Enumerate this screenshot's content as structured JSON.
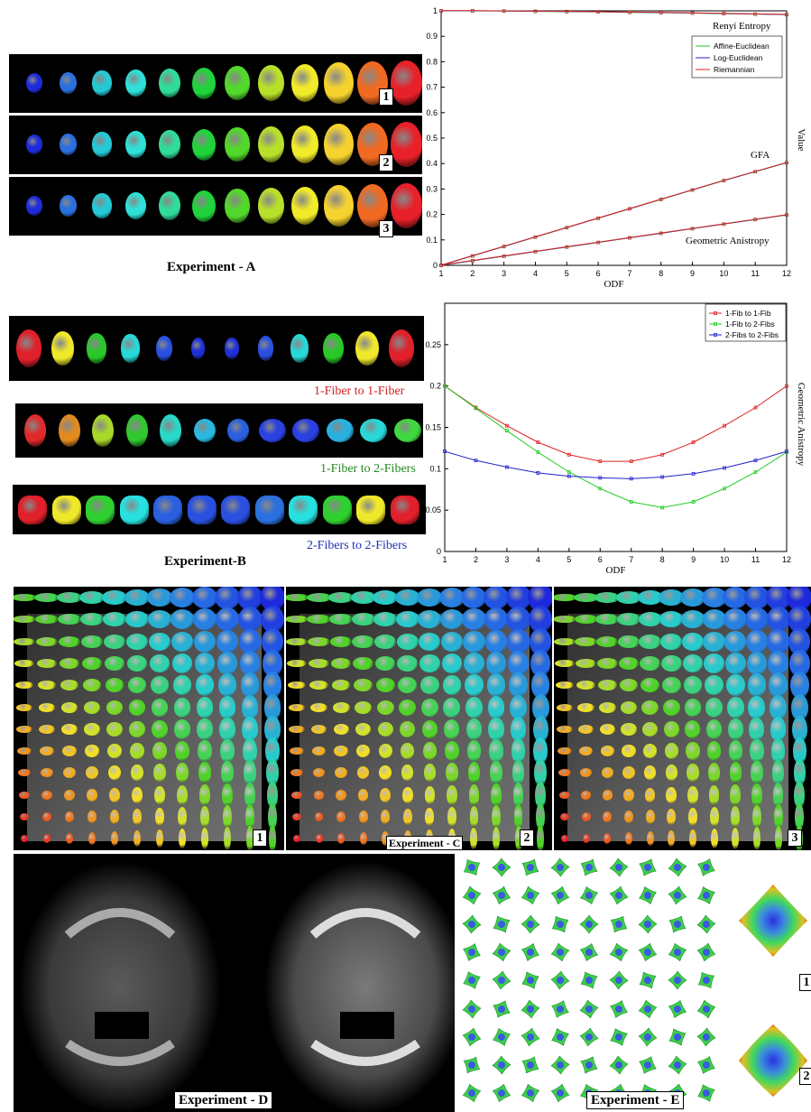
{
  "experiment_a": {
    "caption": "Experiment - A",
    "strip_labels": [
      "1",
      "2",
      "3"
    ],
    "colors": [
      "#1e2bd8",
      "#2a6fe0",
      "#25c9d6",
      "#2ee0d8",
      "#2fdc9a",
      "#1fd43a",
      "#52d82a",
      "#b8e02a",
      "#f0ea2a",
      "#f5d22e",
      "#f06a22",
      "#e8202a"
    ]
  },
  "chart_a": {
    "type": "line",
    "xlabel": "ODF",
    "ylabel": "Value",
    "x": [
      1,
      2,
      3,
      4,
      5,
      6,
      7,
      8,
      9,
      10,
      11,
      12
    ],
    "ylim": [
      0,
      1
    ],
    "yticks": [
      "0",
      "0.1",
      "0.2",
      "0.3",
      "0.4",
      "0.5",
      "0.6",
      "0.7",
      "0.8",
      "0.9",
      "1"
    ],
    "legend": [
      "Affine-Euclidean",
      "Log-Euclidean",
      "Riemannian"
    ],
    "legend_colors": [
      "#22cc22",
      "#2222cc",
      "#dd2222"
    ],
    "annotations": [
      "Renyi Entropy",
      "GFA",
      "Geometric Anistropy"
    ],
    "series": [
      {
        "group": "Renyi Entropy",
        "values": [
          1.0,
          1.0,
          0.999,
          0.998,
          0.997,
          0.996,
          0.994,
          0.993,
          0.991,
          0.989,
          0.987,
          0.985
        ]
      },
      {
        "group": "GFA",
        "values": [
          0.0,
          0.037,
          0.074,
          0.111,
          0.148,
          0.185,
          0.222,
          0.259,
          0.296,
          0.333,
          0.368,
          0.403
        ]
      },
      {
        "group": "Geometric Anistropy",
        "values": [
          0.0,
          0.018,
          0.036,
          0.054,
          0.072,
          0.09,
          0.108,
          0.126,
          0.144,
          0.162,
          0.18,
          0.198
        ]
      }
    ]
  },
  "experiment_b": {
    "caption": "Experiment-B",
    "rows": [
      {
        "label": "1-Fiber to 1-Fiber",
        "color": "#d02020",
        "colors": [
          "#e0202a",
          "#f0e82a",
          "#28c828",
          "#28d8d8",
          "#2a50e0",
          "#2030d8",
          "#2030d8",
          "#2a50e0",
          "#28d8d8",
          "#28c828",
          "#f0e82a",
          "#e0202a"
        ]
      },
      {
        "label": "1-Fiber to 2-Fibers",
        "color": "#208a20",
        "colors": [
          "#e02a2a",
          "#e08a20",
          "#a8d82a",
          "#30c830",
          "#28d8c8",
          "#28b8e0",
          "#2a60e0",
          "#2a40e0",
          "#2a40e0",
          "#28b0e0",
          "#28d8d8",
          "#40d840"
        ]
      },
      {
        "label": "2-Fibers to 2-Fibers",
        "color": "#2030b0",
        "colors": [
          "#e0202a",
          "#f0e82a",
          "#30d030",
          "#28e0e0",
          "#2a60e0",
          "#2a50e0",
          "#2a50e0",
          "#2a70e0",
          "#28e0e0",
          "#30d030",
          "#f0e82a",
          "#e0202a"
        ]
      }
    ]
  },
  "chart_b": {
    "type": "line",
    "xlabel": "ODF",
    "ylabel": "Geometric Anistropy",
    "x": [
      1,
      2,
      3,
      4,
      5,
      6,
      7,
      8,
      9,
      10,
      11,
      12
    ],
    "ylim": [
      0,
      0.3
    ],
    "yticks": [
      "0",
      "0.05",
      "0.1",
      "0.15",
      "0.2",
      "0.25"
    ],
    "legend": [
      "1-Fib to 1-Fib",
      "1-Fib to 2-Fibs",
      "2-Fibs to 2-Fibs"
    ],
    "series": [
      {
        "name": "1-Fib to 1-Fib",
        "color": "#dd2222",
        "values": [
          0.2,
          0.174,
          0.152,
          0.132,
          0.117,
          0.109,
          0.109,
          0.117,
          0.132,
          0.152,
          0.174,
          0.2
        ]
      },
      {
        "name": "1-Fib to 2-Fibs",
        "color": "#22cc22",
        "values": [
          0.2,
          0.173,
          0.146,
          0.12,
          0.096,
          0.076,
          0.06,
          0.053,
          0.06,
          0.076,
          0.096,
          0.12
        ]
      },
      {
        "name": "2-Fibs to 2-Fibs",
        "color": "#2222cc",
        "values": [
          0.121,
          0.11,
          0.102,
          0.095,
          0.091,
          0.089,
          0.088,
          0.09,
          0.094,
          0.101,
          0.11,
          0.121
        ]
      }
    ]
  },
  "experiment_c": {
    "caption": "Experiment - C",
    "panel_labels": [
      "1",
      "2",
      "3"
    ]
  },
  "experiment_d": {
    "caption": "Experiment - D"
  },
  "experiment_e": {
    "caption": "Experiment - E",
    "labels": [
      "1",
      "2"
    ]
  }
}
